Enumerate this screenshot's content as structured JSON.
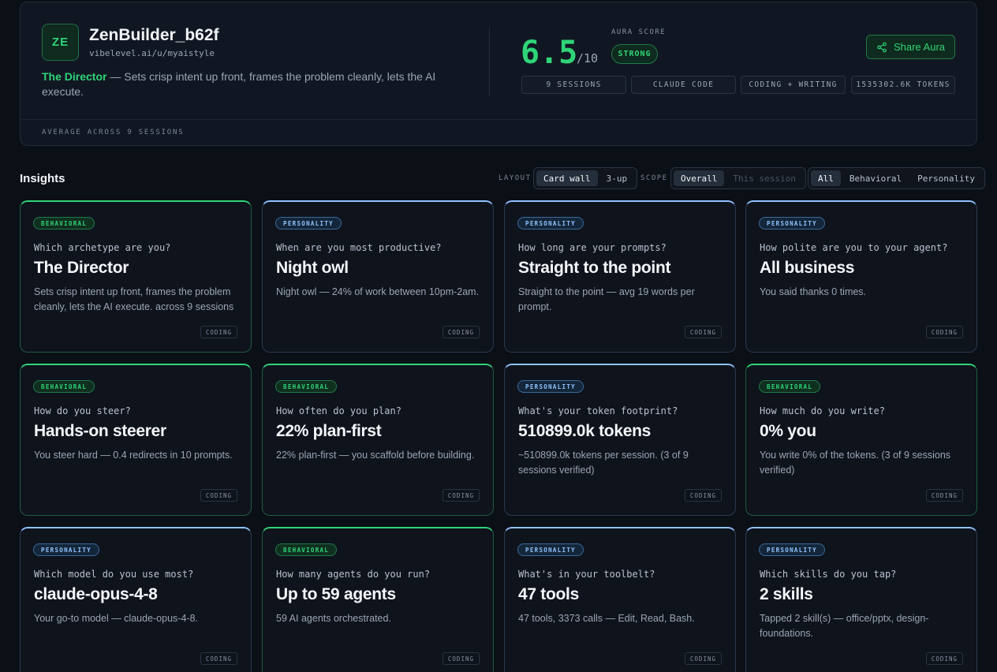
{
  "profile": {
    "initials": "ZE",
    "username": "ZenBuilder_b62f",
    "url": "vibelevel.ai/u/myaistyle",
    "archetype": "The Director",
    "tagline": " — Sets crisp intent up front, frames the problem cleanly, lets the AI execute."
  },
  "score": {
    "value": "6.5",
    "max": "/10",
    "label": "AURA SCORE",
    "rating": "STRONG"
  },
  "share": {
    "label": "Share Aura",
    "icon": "share-icon"
  },
  "stats": [
    "9 SESSIONS",
    "CLAUDE CODE",
    "CODING + WRITING",
    "1535302.6K TOKENS"
  ],
  "average_label": "AVERAGE ACROSS 9 SESSIONS",
  "toolbar": {
    "title": "Insights",
    "layout_label": "LAYOUT",
    "layout_options": [
      "Card wall",
      "3-up"
    ],
    "layout_active": "Card wall",
    "scope_label": "SCOPE",
    "scope_options": [
      "Overall",
      "This session"
    ],
    "scope_active": "Overall",
    "filter_options": [
      "All",
      "Behavioral",
      "Personality"
    ],
    "filter_active": "All"
  },
  "colors": {
    "accent_green": "#2fd478",
    "accent_blue": "#8fc3ff",
    "background": "#0b0f16"
  },
  "cards": [
    {
      "type": "behavioral",
      "badge": "BEHAVIORAL",
      "question": "Which archetype are you?",
      "answer": "The Director",
      "detail": "Sets crisp intent up front, frames the problem cleanly, lets the AI execute. across 9 sessions",
      "tag": "CODING"
    },
    {
      "type": "personality",
      "badge": "PERSONALITY",
      "question": "When are you most productive?",
      "answer": "Night owl",
      "detail": "Night owl — 24% of work between 10pm-2am.",
      "tag": "CODING"
    },
    {
      "type": "personality",
      "badge": "PERSONALITY",
      "question": "How long are your prompts?",
      "answer": "Straight to the point",
      "detail": "Straight to the point — avg 19 words per prompt.",
      "tag": "CODING"
    },
    {
      "type": "personality",
      "badge": "PERSONALITY",
      "question": "How polite are you to your agent?",
      "answer": "All business",
      "detail": "You said thanks 0 times.",
      "tag": "CODING"
    },
    {
      "type": "behavioral",
      "badge": "BEHAVIORAL",
      "question": "How do you steer?",
      "answer": "Hands-on steerer",
      "detail": "You steer hard — 0.4 redirects in 10 prompts.",
      "tag": "CODING"
    },
    {
      "type": "behavioral",
      "badge": "BEHAVIORAL",
      "question": "How often do you plan?",
      "answer": "22% plan-first",
      "detail": "22% plan-first — you scaffold before building.",
      "tag": "CODING"
    },
    {
      "type": "personality",
      "badge": "PERSONALITY",
      "question": "What's your token footprint?",
      "answer": "510899.0k tokens",
      "detail": "~510899.0k tokens per session. (3 of 9 sessions verified)",
      "tag": "CODING"
    },
    {
      "type": "behavioral",
      "badge": "BEHAVIORAL",
      "question": "How much do you write?",
      "answer": "0% you",
      "detail": "You write 0% of the tokens. (3 of 9 sessions verified)",
      "tag": "CODING"
    },
    {
      "type": "personality",
      "badge": "PERSONALITY",
      "question": "Which model do you use most?",
      "answer": "claude-opus-4-8",
      "detail": "Your go-to model — claude-opus-4-8.",
      "tag": "CODING"
    },
    {
      "type": "behavioral",
      "badge": "BEHAVIORAL",
      "question": "How many agents do you run?",
      "answer": "Up to 59 agents",
      "detail": "59 AI agents orchestrated.",
      "tag": "CODING"
    },
    {
      "type": "personality",
      "badge": "PERSONALITY",
      "question": "What's in your toolbelt?",
      "answer": "47 tools",
      "detail": "47 tools, 3373 calls — Edit, Read, Bash.",
      "tag": "CODING"
    },
    {
      "type": "personality",
      "badge": "PERSONALITY",
      "question": "Which skills do you tap?",
      "answer": "2 skills",
      "detail": "Tapped 2 skill(s) — office/pptx, design-foundations.",
      "tag": "CODING"
    }
  ]
}
